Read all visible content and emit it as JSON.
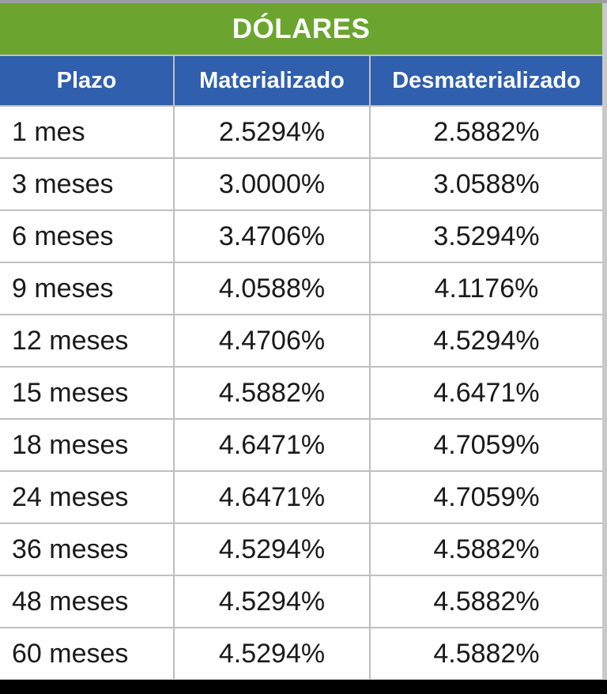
{
  "table": {
    "title": "DÓLARES",
    "columns": [
      {
        "label": "Plazo"
      },
      {
        "label": "Materializado"
      },
      {
        "label": "Desmaterializado"
      }
    ],
    "rows": [
      {
        "plazo": "1 mes",
        "materializado": "2.5294%",
        "desmaterializado": "2.5882%"
      },
      {
        "plazo": "3 meses",
        "materializado": "3.0000%",
        "desmaterializado": "3.0588%"
      },
      {
        "plazo": "6 meses",
        "materializado": "3.4706%",
        "desmaterializado": "3.5294%"
      },
      {
        "plazo": "9 meses",
        "materializado": "4.0588%",
        "desmaterializado": "4.1176%"
      },
      {
        "plazo": "12 meses",
        "materializado": "4.4706%",
        "desmaterializado": "4.5294%"
      },
      {
        "plazo": "15 meses",
        "materializado": "4.5882%",
        "desmaterializado": "4.6471%"
      },
      {
        "plazo": "18 meses",
        "materializado": "4.6471%",
        "desmaterializado": "4.7059%"
      },
      {
        "plazo": "24 meses",
        "materializado": "4.6471%",
        "desmaterializado": "4.7059%"
      },
      {
        "plazo": "36 meses",
        "materializado": "4.5294%",
        "desmaterializado": "4.5882%"
      },
      {
        "plazo": "48 meses",
        "materializado": "4.5294%",
        "desmaterializado": "4.5882%"
      },
      {
        "plazo": "60 meses",
        "materializado": "4.5294%",
        "desmaterializado": "4.5882%"
      }
    ],
    "colors": {
      "title_bg": "#6ba52f",
      "header_bg": "#2f5fad",
      "header_text": "#ffffff",
      "cell_bg": "#ffffff",
      "cell_text": "#1a1a1a",
      "gridline": "#bfbfbf",
      "top_strip": "#a19ea1",
      "side_band": "#c9c9c9",
      "bottom_bar": "#000000"
    }
  },
  "chart_data": {
    "type": "table",
    "title": "DÓLARES",
    "columns": [
      "Plazo",
      "Materializado",
      "Desmaterializado"
    ],
    "rows": [
      [
        "1 mes",
        "2.5294%",
        "2.5882%"
      ],
      [
        "3 meses",
        "3.0000%",
        "3.0588%"
      ],
      [
        "6 meses",
        "3.4706%",
        "3.5294%"
      ],
      [
        "9 meses",
        "4.0588%",
        "4.1176%"
      ],
      [
        "12 meses",
        "4.4706%",
        "4.5294%"
      ],
      [
        "15 meses",
        "4.5882%",
        "4.6471%"
      ],
      [
        "18 meses",
        "4.6471%",
        "4.7059%"
      ],
      [
        "24 meses",
        "4.6471%",
        "4.7059%"
      ],
      [
        "36 meses",
        "4.5294%",
        "4.5882%"
      ],
      [
        "48 meses",
        "4.5294%",
        "4.5882%"
      ],
      [
        "60 meses",
        "4.5294%",
        "4.5882%"
      ]
    ]
  }
}
